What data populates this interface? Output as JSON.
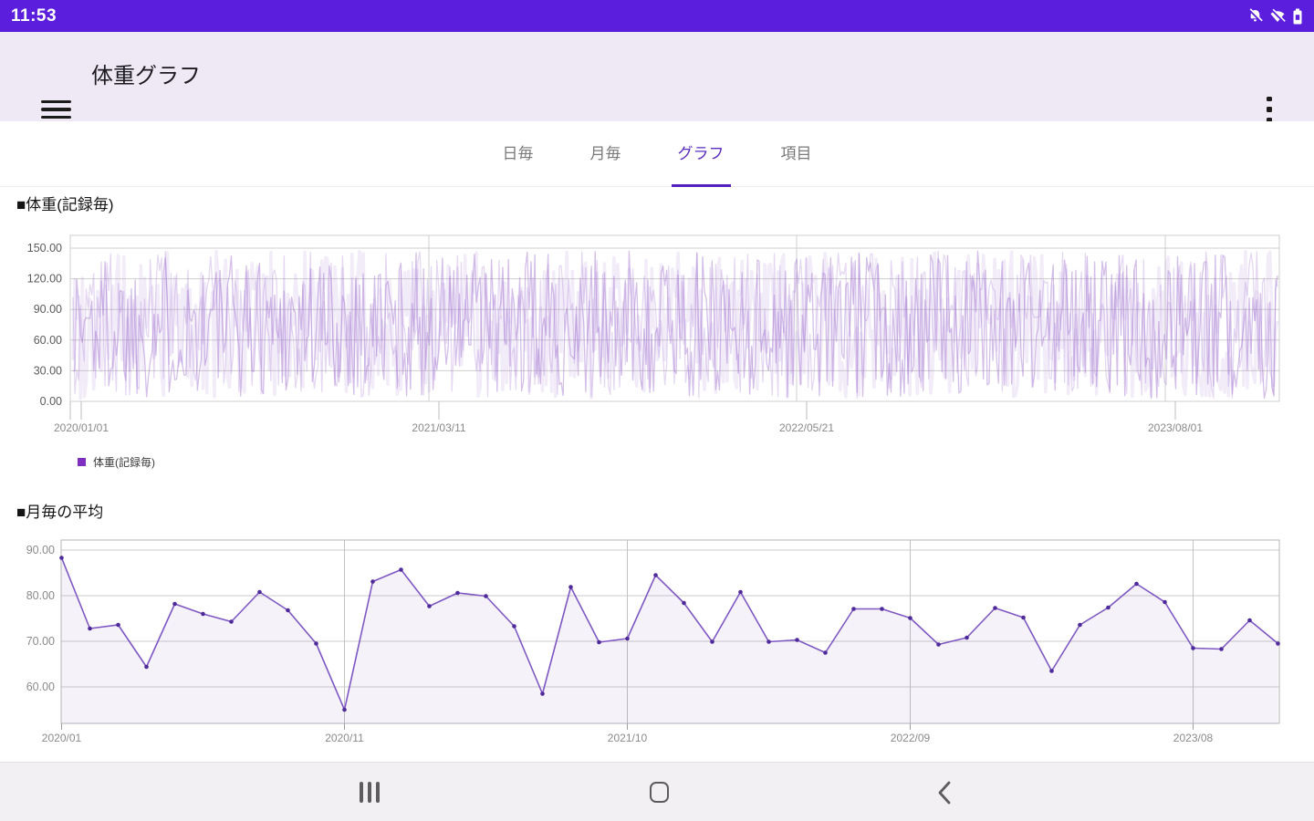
{
  "status_bar": {
    "time": "11:53",
    "bg_color": "#5C1EDD",
    "icons": [
      "mute-icon",
      "wifi-off-icon",
      "battery-icon"
    ]
  },
  "app_bar": {
    "title": "体重グラフ",
    "bg_color": "#EFE9F6"
  },
  "tabs": {
    "accent_color": "#5B2DC0",
    "items": [
      {
        "label": "日毎",
        "selected": false
      },
      {
        "label": "月毎",
        "selected": false
      },
      {
        "label": "グラフ",
        "selected": true
      },
      {
        "label": "項目",
        "selected": false
      }
    ]
  },
  "chart_data": [
    {
      "id": "weight-per-record",
      "type": "line",
      "title": "■体重(記録毎)",
      "legend": [
        {
          "label": "体重(記録毎)",
          "color": "#7E2FBF"
        }
      ],
      "ylabel": "",
      "ylim": [
        0,
        150
      ],
      "yticks": [
        "150.00",
        "120.00",
        "90.00",
        "60.00",
        "30.00",
        "0.00"
      ],
      "ytick_values": [
        150,
        120,
        90,
        60,
        30,
        0
      ],
      "x_labels": [
        "2020/01/01",
        "2021/03/11",
        "2022/05/21",
        "2023/08/01"
      ],
      "grid": true,
      "line_color": "#A97FD4",
      "note": "Very dense noisy series of individual weight records oscillating across nearly the full 0-150 range; individual values are not legible in the screenshot.",
      "render": {
        "points": 640,
        "min": 3,
        "max": 147,
        "layers": [
          {
            "seed": 1337,
            "alpha": 0.5,
            "width": 1.3
          },
          {
            "seed": 777,
            "alpha": 0.3,
            "width": 1.3
          },
          {
            "seed": 99,
            "alpha": 0.15,
            "width": 3.5
          }
        ]
      }
    },
    {
      "id": "monthly-average",
      "type": "area",
      "title": "■月毎の平均",
      "ylim": [
        52,
        92
      ],
      "yticks": [
        "90.00",
        "80.00",
        "70.00",
        "60.00"
      ],
      "ytick_values": [
        90,
        80,
        70,
        60
      ],
      "x_gridlines": [
        {
          "index": 0,
          "label": "2020/01"
        },
        {
          "index": 10,
          "label": "2020/11"
        },
        {
          "index": 20,
          "label": "2021/10"
        },
        {
          "index": 30,
          "label": "2022/09"
        },
        {
          "index": 40,
          "label": "2023/08"
        }
      ],
      "values": [
        88.3,
        72.8,
        73.6,
        64.4,
        78.2,
        76.0,
        74.3,
        80.8,
        76.8,
        69.5,
        55.0,
        83.1,
        85.7,
        77.7,
        80.6,
        79.9,
        73.3,
        58.5,
        81.9,
        69.8,
        70.6,
        84.5,
        78.4,
        69.9,
        80.8,
        69.9,
        70.3,
        67.5,
        77.1,
        77.1,
        75.1,
        69.3,
        70.8,
        77.3,
        75.2,
        63.5,
        73.6,
        77.4,
        82.6,
        78.6,
        68.5,
        68.3,
        74.6,
        69.5
      ],
      "grid": true,
      "line_color": "#7E57C2",
      "dot_color": "#4E2A9A",
      "fill_color": "rgba(126,87,194,0.08)"
    }
  ],
  "bottom_nav": {
    "items": [
      "recents",
      "home",
      "back"
    ]
  }
}
